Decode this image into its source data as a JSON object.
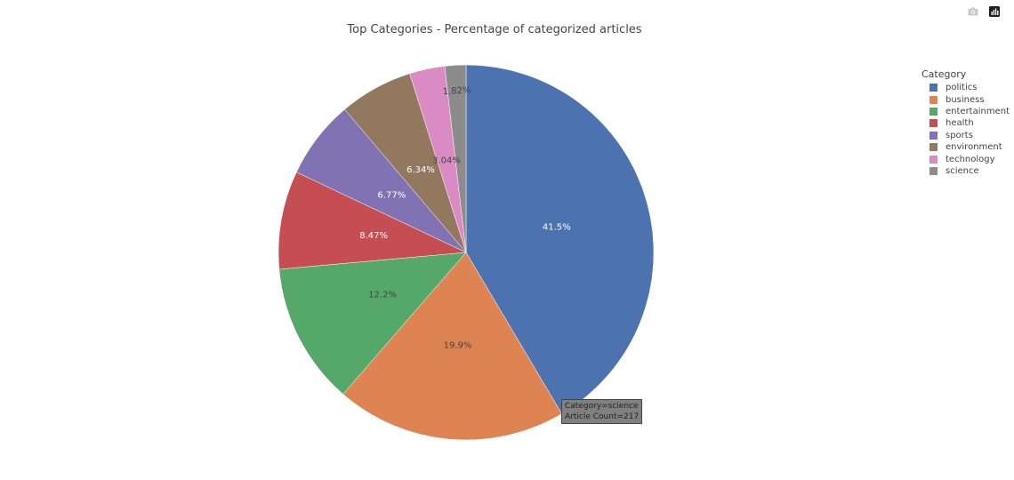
{
  "chart_data": {
    "type": "pie",
    "title": "Top Categories - Percentage of categorized articles",
    "legend_title": "Category",
    "legend_position": "right",
    "slices": [
      {
        "label": "politics",
        "percent": 41.5,
        "percent_label": "41.5%",
        "color": "#4c72b0",
        "text_color": "#ffffff"
      },
      {
        "label": "business",
        "percent": 19.9,
        "percent_label": "19.9%",
        "color": "#dd8452",
        "text_color": "#444444"
      },
      {
        "label": "entertainment",
        "percent": 12.2,
        "percent_label": "12.2%",
        "color": "#55a868",
        "text_color": "#444444"
      },
      {
        "label": "health",
        "percent": 8.47,
        "percent_label": "8.47%",
        "color": "#c44e52",
        "text_color": "#ffffff"
      },
      {
        "label": "sports",
        "percent": 6.77,
        "percent_label": "6.77%",
        "color": "#8172b3",
        "text_color": "#ffffff"
      },
      {
        "label": "environment",
        "percent": 6.34,
        "percent_label": "6.34%",
        "color": "#937860",
        "text_color": "#ffffff"
      },
      {
        "label": "technology",
        "percent": 3.04,
        "percent_label": "3.04%",
        "color": "#da8bc3",
        "text_color": "#444444"
      },
      {
        "label": "science",
        "percent": 1.82,
        "percent_label": "1.82%",
        "color": "#8c8c8c",
        "text_color": "#444444"
      }
    ],
    "hover": {
      "line1": "Category=science",
      "line2": "Article Count=217"
    }
  },
  "modebar": {
    "icons": [
      "camera-icon",
      "plotly-logo-icon"
    ]
  }
}
